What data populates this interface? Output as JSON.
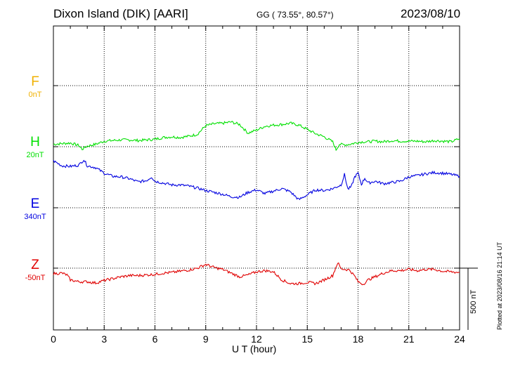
{
  "header": {
    "station": "Dixon Island (DIK)  [AARI]",
    "coords": "GG ( 73.55°,  80.57°)",
    "date": "2023/08/10"
  },
  "scale_label": "500 nT",
  "plotted_stamp": "Plotted at 2023/08/16 21:14 UT",
  "colors": {
    "F": "#f0b000",
    "H": "#00e000",
    "E": "#0000e0",
    "Z": "#e00000"
  },
  "chart_data": {
    "type": "line",
    "title": "Dixon Island (DIK)  [AARI]",
    "xlabel": "U T (hour)",
    "ylabel": "",
    "xlim": [
      0,
      24
    ],
    "xticks": [
      "0",
      "3",
      "6",
      "9",
      "12",
      "15",
      "18",
      "21",
      "24"
    ],
    "grid": true,
    "scale_bar": "500 nT",
    "channels": [
      {
        "name": "F",
        "baseline_label": "0nT",
        "color": "#f0b000",
        "offset_nT": 0
      },
      {
        "name": "H",
        "baseline_label": "20nT",
        "color": "#00e000",
        "offset_nT": 20
      },
      {
        "name": "E",
        "baseline_label": "340nT",
        "color": "#0000e0",
        "offset_nT": 340
      },
      {
        "name": "Z",
        "baseline_label": "-50nT",
        "color": "#e00000",
        "offset_nT": -50
      }
    ],
    "series": [
      {
        "name": "H",
        "x": [
          0,
          0.5,
          1,
          1.5,
          1.7,
          2,
          2.5,
          3,
          3.5,
          4,
          4.5,
          5,
          5.5,
          6,
          6.5,
          7,
          7.5,
          8,
          8.5,
          9,
          9.5,
          10,
          10.5,
          11,
          11.5,
          12,
          12.5,
          13,
          13.5,
          14,
          14.5,
          15,
          15.5,
          16,
          16.5,
          16.7,
          16.9,
          17.2,
          17.5,
          18,
          18.3,
          18.6,
          19,
          19.5,
          20,
          20.5,
          21,
          21.5,
          22,
          22.5,
          23,
          23.5,
          24
        ],
        "values": [
          20,
          25,
          30,
          10,
          -20,
          5,
          20,
          45,
          50,
          55,
          55,
          50,
          55,
          60,
          75,
          80,
          75,
          85,
          100,
          170,
          185,
          190,
          200,
          180,
          110,
          135,
          165,
          175,
          180,
          190,
          175,
          140,
          105,
          80,
          40,
          -25,
          20,
          15,
          20,
          35,
          40,
          40,
          45,
          40,
          50,
          45,
          45,
          45,
          40,
          50,
          45,
          40,
          65
        ]
      },
      {
        "name": "E",
        "x": [
          0,
          0.5,
          1,
          1.5,
          1.8,
          2,
          2.5,
          3,
          3.5,
          4,
          4.5,
          5,
          5.5,
          5.8,
          6,
          6.5,
          7,
          7.5,
          8,
          8.5,
          9,
          9.5,
          10,
          10.5,
          11,
          11.5,
          12,
          12.5,
          13,
          13.5,
          14,
          14.5,
          15,
          15.5,
          16,
          16.5,
          17,
          17.2,
          17.4,
          17.6,
          17.8,
          18,
          18.2,
          18.4,
          18.6,
          19,
          19.5,
          20,
          20.5,
          21,
          21.5,
          22,
          22.5,
          23,
          23.5,
          24
        ],
        "values": [
          380,
          340,
          335,
          345,
          390,
          340,
          325,
          280,
          255,
          250,
          235,
          210,
          220,
          250,
          215,
          200,
          185,
          185,
          175,
          160,
          140,
          125,
          110,
          90,
          85,
          125,
          145,
          115,
          135,
          155,
          130,
          65,
          105,
          145,
          140,
          155,
          185,
          270,
          150,
          170,
          250,
          280,
          190,
          240,
          200,
          215,
          195,
          205,
          215,
          250,
          260,
          275,
          285,
          280,
          270,
          255
        ]
      },
      {
        "name": "Z",
        "x": [
          0,
          0.5,
          0.8,
          1,
          1.5,
          2,
          2.5,
          3,
          3.5,
          4,
          4.5,
          5,
          5.5,
          6,
          6.5,
          7,
          7.5,
          8,
          8.5,
          9,
          9.5,
          10,
          10.5,
          11,
          11.5,
          12,
          12.5,
          13,
          13.5,
          14,
          14.5,
          15,
          15.5,
          16,
          16.5,
          16.8,
          17,
          17.5,
          17.8,
          18,
          18.3,
          18.6,
          19,
          19.5,
          20,
          20.5,
          21,
          21.5,
          22,
          22.5,
          23,
          23.5,
          24
        ],
        "values": [
          -45,
          -40,
          -55,
          -95,
          -110,
          -110,
          -120,
          -100,
          -85,
          -70,
          -60,
          -60,
          -55,
          -50,
          -40,
          -35,
          -25,
          -15,
          0,
          30,
          5,
          -10,
          -40,
          -70,
          -55,
          -30,
          -20,
          -30,
          -95,
          -125,
          -125,
          -115,
          -125,
          -95,
          -60,
          45,
          -5,
          -15,
          -65,
          -110,
          -130,
          -95,
          -70,
          -40,
          -20,
          -20,
          -10,
          -20,
          -10,
          -10,
          -25,
          -30,
          -35
        ]
      }
    ]
  }
}
